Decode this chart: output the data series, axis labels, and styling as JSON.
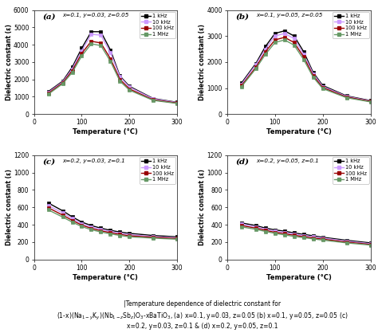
{
  "subplots": [
    {
      "label": "(a)",
      "annotation": "x=0.1, y=0.03, z=0.05",
      "ylim": [
        0,
        6000
      ],
      "yticks": [
        0,
        1000,
        2000,
        3000,
        4000,
        5000,
        6000
      ],
      "xlim": [
        0,
        300
      ],
      "xticks": [
        0,
        100,
        200,
        300
      ],
      "temperatures": [
        30,
        60,
        80,
        100,
        120,
        140,
        160,
        180,
        200,
        250,
        300
      ],
      "curves": [
        {
          "label": "1 kHz",
          "color": "#000000",
          "marker": "s",
          "values": [
            1300,
            1900,
            2700,
            3800,
            4750,
            4750,
            3700,
            2200,
            1600,
            900,
            680
          ]
        },
        {
          "label": "10 kHz",
          "color": "#CC99FF",
          "marker": "s",
          "values": [
            1250,
            1850,
            2600,
            3650,
            4600,
            4550,
            3550,
            2150,
            1550,
            875,
            665
          ]
        },
        {
          "label": "100 kHz",
          "color": "#990000",
          "marker": "s",
          "values": [
            1200,
            1800,
            2500,
            3500,
            4200,
            4100,
            3200,
            2000,
            1450,
            820,
            640
          ]
        },
        {
          "label": "1 MHz",
          "color": "#669966",
          "marker": "s",
          "values": [
            1150,
            1750,
            2400,
            3350,
            4050,
            3950,
            3050,
            1900,
            1380,
            790,
            615
          ]
        }
      ]
    },
    {
      "label": "(b)",
      "annotation": "x=0.1, y=0.05, z=0.05",
      "ylim": [
        0,
        4000
      ],
      "yticks": [
        0,
        1000,
        2000,
        3000,
        4000
      ],
      "xlim": [
        0,
        300
      ],
      "xticks": [
        0,
        100,
        200,
        300
      ],
      "temperatures": [
        30,
        60,
        80,
        100,
        120,
        140,
        160,
        180,
        200,
        250,
        300
      ],
      "curves": [
        {
          "label": "1 kHz",
          "color": "#000000",
          "marker": "s",
          "values": [
            1200,
            1950,
            2600,
            3100,
            3200,
            3000,
            2400,
            1600,
            1100,
            700,
            520
          ]
        },
        {
          "label": "10 kHz",
          "color": "#CC99FF",
          "marker": "s",
          "values": [
            1150,
            1900,
            2500,
            3000,
            3100,
            2900,
            2300,
            1550,
            1060,
            680,
            505
          ]
        },
        {
          "label": "100 kHz",
          "color": "#990000",
          "marker": "s",
          "values": [
            1100,
            1800,
            2400,
            2850,
            2950,
            2750,
            2200,
            1480,
            1020,
            655,
            488
          ]
        },
        {
          "label": "1 MHz",
          "color": "#669966",
          "marker": "s",
          "values": [
            1060,
            1750,
            2300,
            2750,
            2850,
            2650,
            2100,
            1420,
            980,
            630,
            470
          ]
        }
      ]
    },
    {
      "label": "(c)",
      "annotation": "x=0.2, y=0.03, z=0.1",
      "ylim": [
        0,
        1200
      ],
      "yticks": [
        0,
        200,
        400,
        600,
        800,
        1000,
        1200
      ],
      "xlim": [
        0,
        300
      ],
      "xticks": [
        0,
        100,
        200,
        300
      ],
      "temperatures": [
        30,
        60,
        80,
        100,
        120,
        140,
        160,
        180,
        200,
        250,
        300
      ],
      "curves": [
        {
          "label": "1 kHz",
          "color": "#000000",
          "marker": "s",
          "values": [
            650,
            560,
            490,
            430,
            390,
            360,
            335,
            315,
            300,
            275,
            260
          ]
        },
        {
          "label": "10 kHz",
          "color": "#CC99FF",
          "marker": "s",
          "values": [
            620,
            535,
            470,
            410,
            375,
            345,
            320,
            300,
            285,
            262,
            248
          ]
        },
        {
          "label": "100 kHz",
          "color": "#990000",
          "marker": "s",
          "values": [
            595,
            510,
            450,
            395,
            358,
            330,
            308,
            288,
            272,
            255,
            240
          ]
        },
        {
          "label": "1 MHz",
          "color": "#669966",
          "marker": "s",
          "values": [
            570,
            488,
            430,
            378,
            342,
            316,
            294,
            276,
            260,
            245,
            232
          ]
        }
      ]
    },
    {
      "label": "(d)",
      "annotation": "x=0.2, y=0.05, z=0.1",
      "ylim": [
        0,
        1200
      ],
      "yticks": [
        0,
        200,
        400,
        600,
        800,
        1000,
        1200
      ],
      "xlim": [
        0,
        300
      ],
      "xticks": [
        0,
        100,
        200,
        300
      ],
      "temperatures": [
        30,
        60,
        80,
        100,
        120,
        140,
        160,
        180,
        200,
        250,
        300
      ],
      "curves": [
        {
          "label": "1 kHz",
          "color": "#000000",
          "marker": "s",
          "values": [
            420,
            390,
            360,
            340,
            325,
            305,
            288,
            272,
            255,
            220,
            190
          ]
        },
        {
          "label": "10 kHz",
          "color": "#CC99FF",
          "marker": "s",
          "values": [
            405,
            375,
            348,
            325,
            310,
            292,
            275,
            260,
            245,
            210,
            180
          ]
        },
        {
          "label": "100 kHz",
          "color": "#990000",
          "marker": "s",
          "values": [
            390,
            360,
            335,
            312,
            296,
            278,
            262,
            248,
            233,
            200,
            172
          ]
        },
        {
          "label": "1 MHz",
          "color": "#669966",
          "marker": "s",
          "values": [
            375,
            346,
            322,
            300,
            282,
            265,
            250,
            236,
            222,
            190,
            165
          ]
        }
      ]
    }
  ],
  "xlabel": "Temperature (°C)",
  "ylabel": "Dielectric constant (ε)",
  "bg_color": "#ffffff",
  "plot_bg": "#ffffff",
  "line_width": 1.0,
  "marker_size": 3.0
}
